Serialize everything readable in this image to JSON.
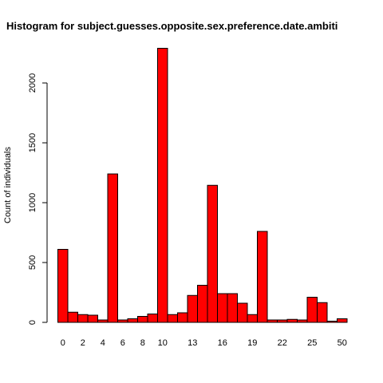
{
  "chart_data": {
    "type": "bar",
    "title": "Histogram for subject.guesses.opposite.sex.preference.date.ambiti",
    "xlabel": "",
    "ylabel": "Count of individuals",
    "ylim": [
      0,
      2300
    ],
    "yticks": [
      0,
      500,
      1000,
      1500,
      2000
    ],
    "xtick_labels": [
      "0",
      "2",
      "4",
      "6",
      "8",
      "10",
      "13",
      "16",
      "19",
      "22",
      "25",
      "50"
    ],
    "xtick_bar_index": [
      0,
      2,
      4,
      6,
      8,
      10,
      13,
      16,
      19,
      22,
      25,
      28
    ],
    "values": [
      610,
      85,
      65,
      60,
      20,
      1240,
      20,
      30,
      50,
      70,
      2290,
      65,
      80,
      225,
      310,
      1145,
      240,
      240,
      160,
      65,
      760,
      20,
      20,
      25,
      20,
      210,
      165,
      10,
      30
    ],
    "bar_color": "#ff0000",
    "grid": false
  }
}
